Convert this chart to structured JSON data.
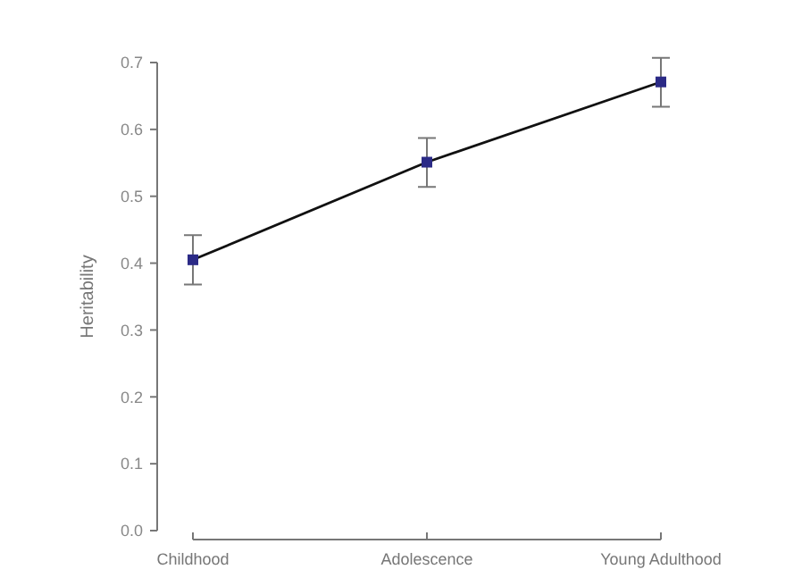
{
  "chart_data": {
    "type": "line",
    "ylabel": "Heritability",
    "categories": [
      "Childhood",
      "Adolescence",
      "Young Adulthood"
    ],
    "series": [
      {
        "color": "#2b2a86",
        "values": [
          0.405,
          0.551,
          0.671
        ],
        "errors": [
          [
            0.368,
            0.442
          ],
          [
            0.514,
            0.587
          ],
          [
            0.634,
            0.707
          ]
        ]
      }
    ],
    "ylim": [
      0,
      0.7
    ],
    "yticks": [
      {
        "value": 0,
        "label": "0.0"
      },
      0.1,
      0.2,
      0.3,
      0.4,
      0.5,
      0.6,
      0.7
    ],
    "marker": "square",
    "line_style": "solid",
    "grid": false
  }
}
